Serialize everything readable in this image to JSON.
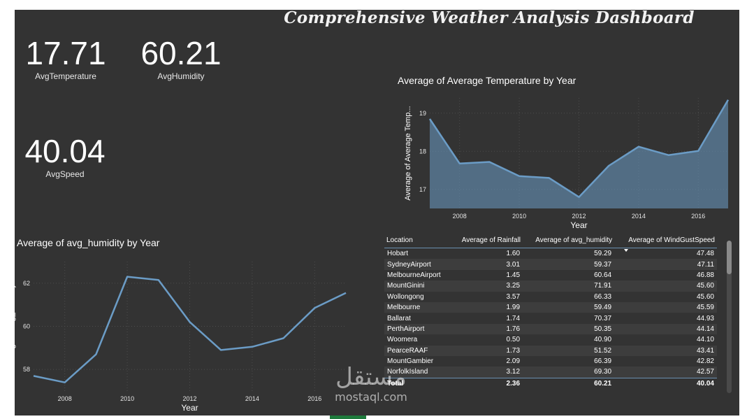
{
  "dashboard": {
    "title": "Comprehensive Weather Analysis Dashboard",
    "background": "#333333",
    "accent": "#6b9cc6"
  },
  "kpis": {
    "temperature": {
      "value": "17.71",
      "label": "AvgTemperature"
    },
    "humidity": {
      "value": "60.21",
      "label": "AvgHumidity"
    },
    "speed": {
      "value": "40.04",
      "label": "AvgSpeed"
    }
  },
  "chart_data": [
    {
      "type": "area",
      "title": "Average of Average Temperature by Year",
      "xlabel": "Year",
      "ylabel": "Average of Average Temp...",
      "x": [
        2007,
        2008,
        2009,
        2010,
        2011,
        2012,
        2013,
        2014,
        2015,
        2016,
        2017
      ],
      "values": [
        18.85,
        17.68,
        17.72,
        17.35,
        17.3,
        16.8,
        17.62,
        18.12,
        17.9,
        18.01,
        19.35
      ],
      "xticks": [
        "2008",
        "2010",
        "2012",
        "2014",
        "2016"
      ],
      "yticks": [
        "17",
        "18",
        "19"
      ],
      "xlim": [
        2007,
        2017
      ],
      "ylim": [
        16.5,
        19.4
      ],
      "grid": true,
      "color": "#6b9cc6"
    },
    {
      "type": "line",
      "title": "Average of avg_humidity by Year",
      "xlabel": "Year",
      "ylabel": "Average of avg_humidity",
      "x": [
        2007,
        2008,
        2009,
        2010,
        2011,
        2012,
        2013,
        2014,
        2015,
        2016,
        2017
      ],
      "values": [
        57.7,
        57.4,
        58.7,
        62.3,
        62.15,
        60.2,
        58.9,
        59.05,
        59.45,
        60.85,
        61.55
      ],
      "xticks": [
        "2008",
        "2010",
        "2012",
        "2014",
        "2016"
      ],
      "yticks": [
        "58",
        "60",
        "62"
      ],
      "xlim": [
        2007,
        2017
      ],
      "ylim": [
        57.0,
        63.0
      ],
      "grid": true,
      "color": "#6b9cc6"
    },
    {
      "type": "table",
      "columns": [
        "Location",
        "Average of Rainfall",
        "Average of avg_humidity",
        "Average of WindGustSpeed"
      ],
      "rows": [
        [
          "Hobart",
          "1.60",
          "59.29",
          "47.48"
        ],
        [
          "SydneyAirport",
          "3.01",
          "59.37",
          "47.11"
        ],
        [
          "MelbourneAirport",
          "1.45",
          "60.64",
          "46.88"
        ],
        [
          "MountGinini",
          "3.25",
          "71.91",
          "45.60"
        ],
        [
          "Wollongong",
          "3.57",
          "66.33",
          "45.60"
        ],
        [
          "Melbourne",
          "1.99",
          "59.49",
          "45.59"
        ],
        [
          "Ballarat",
          "1.74",
          "70.37",
          "44.93"
        ],
        [
          "PerthAirport",
          "1.76",
          "50.35",
          "44.14"
        ],
        [
          "Woomera",
          "0.50",
          "40.90",
          "44.10"
        ],
        [
          "PearceRAAF",
          "1.73",
          "51.52",
          "43.41"
        ],
        [
          "MountGambier",
          "2.09",
          "66.39",
          "42.82"
        ],
        [
          "NorfolkIsland",
          "3.12",
          "69.30",
          "42.57"
        ]
      ],
      "total": [
        "Total",
        "2.36",
        "60.21",
        "40.04"
      ]
    }
  ],
  "watermark": {
    "arabic": "مستقل",
    "latin": "mostaql.com"
  }
}
